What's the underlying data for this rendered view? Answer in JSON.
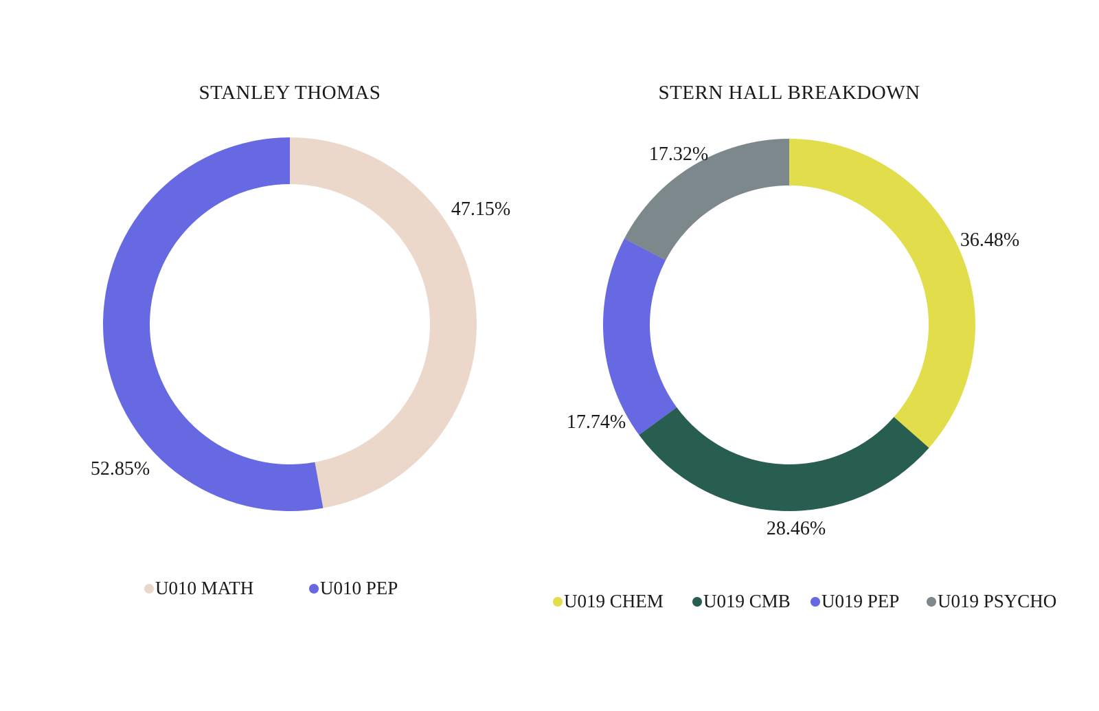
{
  "chart_data": [
    {
      "type": "pie",
      "variant": "donut",
      "title": "STANLEY THOMAS",
      "legend_position": "bottom",
      "slices": [
        {
          "name": "U010 MATH",
          "value": 47.15,
          "label": "47.15%",
          "color": "#ebd8ca"
        },
        {
          "name": "U010 PEP",
          "value": 52.85,
          "label": "52.85%",
          "color": "#6669e2"
        }
      ]
    },
    {
      "type": "pie",
      "variant": "donut",
      "title": "STERN HALL BREAKDOWN",
      "legend_position": "bottom",
      "slices": [
        {
          "name": "U019 CHEM",
          "value": 36.48,
          "label": "36.48%",
          "color": "#e1dd4b"
        },
        {
          "name": "U019 CMB",
          "value": 28.46,
          "label": "28.46%",
          "color": "#275e4f"
        },
        {
          "name": "U019 PEP",
          "value": 17.74,
          "label": "17.74%",
          "color": "#6669e2"
        },
        {
          "name": "U019 PSYCHO",
          "value": 17.32,
          "label": "17.32%",
          "color": "#7d888c"
        }
      ]
    }
  ]
}
